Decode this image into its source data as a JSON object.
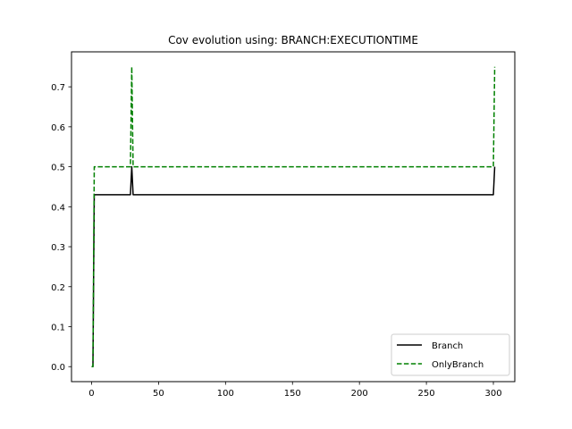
{
  "chart_data": {
    "type": "line",
    "title": "Cov evolution using: BRANCH:EXECUTIONTIME",
    "xlabel": "",
    "ylabel": "",
    "xlim": [
      -15,
      316
    ],
    "ylim": [
      -0.0375,
      0.7875
    ],
    "x_ticks": [
      0,
      50,
      100,
      150,
      200,
      250,
      300
    ],
    "y_ticks": [
      0.0,
      0.1,
      0.2,
      0.3,
      0.4,
      0.5,
      0.6,
      0.7
    ],
    "y_tick_labels": [
      "0.0",
      "0.1",
      "0.2",
      "0.3",
      "0.4",
      "0.5",
      "0.6",
      "0.7"
    ],
    "grid": false,
    "legend_position": "lower-right",
    "series": [
      {
        "name": "Branch",
        "color": "#000000",
        "style": "solid",
        "points": [
          [
            0,
            0.0
          ],
          [
            1,
            0.0
          ],
          [
            2,
            0.43
          ],
          [
            29,
            0.43
          ],
          [
            30,
            0.5
          ],
          [
            31,
            0.43
          ],
          [
            300,
            0.43
          ],
          [
            301,
            0.5
          ]
        ]
      },
      {
        "name": "OnlyBranch",
        "color": "#008000",
        "style": "dashed",
        "points": [
          [
            0,
            0.0
          ],
          [
            1,
            0.0
          ],
          [
            2,
            0.5
          ],
          [
            29,
            0.5
          ],
          [
            30,
            0.75
          ],
          [
            31,
            0.5
          ],
          [
            300,
            0.5
          ],
          [
            301,
            0.75
          ]
        ]
      }
    ]
  }
}
